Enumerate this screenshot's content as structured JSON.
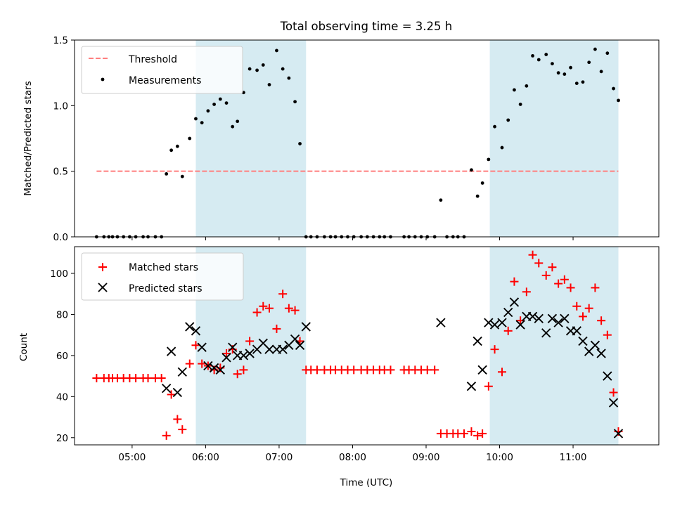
{
  "chart_data": [
    {
      "type": "scatter",
      "title": "Total observing time = 3.25 h",
      "xlabel": "",
      "ylabel": "Matched/Predicted stars",
      "xlim": [
        "04:13",
        "12:10"
      ],
      "ylim": [
        0,
        1.5
      ],
      "yticks": [
        0.0,
        0.5,
        1.0,
        1.5
      ],
      "ytick_labels": [
        "0.0",
        "0.5",
        "1.0",
        "1.5"
      ],
      "xtick_labels": [
        "05:00",
        "06:00",
        "07:00",
        "08:00",
        "09:00",
        "10:00",
        "11:00"
      ],
      "shaded_intervals": [
        [
          "05:52",
          "07:22"
        ],
        [
          "09:52",
          "11:37"
        ]
      ],
      "legend_position": "upper left",
      "series": [
        {
          "name": "Threshold",
          "style": "dashed-line",
          "color": "#ff7f7f",
          "x": [
            "04:31",
            "11:37"
          ],
          "values": [
            0.5,
            0.5
          ]
        },
        {
          "name": "Measurements",
          "style": "dot",
          "color": "#000000",
          "x": [
            "04:31",
            "04:37",
            "04:41",
            "04:44",
            "04:48",
            "04:53",
            "04:58",
            "05:03",
            "05:09",
            "05:13",
            "05:19",
            "05:24",
            "05:28",
            "05:32",
            "05:37",
            "05:41",
            "05:47",
            "05:52",
            "05:57",
            "06:02",
            "06:07",
            "06:12",
            "06:17",
            "06:22",
            "06:26",
            "06:31",
            "06:36",
            "06:42",
            "06:47",
            "06:52",
            "06:58",
            "07:03",
            "07:08",
            "07:13",
            "07:17",
            "07:22",
            "07:26",
            "07:31",
            "07:37",
            "07:42",
            "07:46",
            "07:51",
            "07:56",
            "08:01",
            "08:07",
            "08:12",
            "08:17",
            "08:22",
            "08:26",
            "08:31",
            "08:42",
            "08:46",
            "08:51",
            "08:56",
            "09:01",
            "09:07",
            "09:12",
            "09:17",
            "09:22",
            "09:26",
            "09:31",
            "09:37",
            "09:42",
            "09:46",
            "09:51",
            "09:56",
            "10:02",
            "10:07",
            "10:12",
            "10:17",
            "10:22",
            "10:27",
            "10:32",
            "10:38",
            "10:43",
            "10:48",
            "10:53",
            "10:58",
            "11:03",
            "11:08",
            "11:13",
            "11:18",
            "11:23",
            "11:28",
            "11:33",
            "11:37"
          ],
          "values": [
            0,
            0,
            0,
            0,
            0,
            0,
            0,
            0,
            0,
            0,
            0,
            0,
            0.48,
            0.66,
            0.69,
            0.46,
            0.75,
            0.9,
            0.87,
            0.96,
            1.01,
            1.05,
            1.02,
            0.84,
            0.88,
            1.1,
            1.28,
            1.27,
            1.31,
            1.16,
            1.42,
            1.28,
            1.21,
            1.03,
            0.71,
            0,
            0,
            0,
            0,
            0,
            0,
            0,
            0,
            0,
            0,
            0,
            0,
            0,
            0,
            0,
            0,
            0,
            0,
            0,
            0,
            0,
            0.28,
            0,
            0,
            0,
            0,
            0.51,
            0.31,
            0.41,
            0.59,
            0.84,
            0.68,
            0.89,
            1.12,
            1.01,
            1.15,
            1.38,
            1.35,
            1.39,
            1.32,
            1.25,
            1.24,
            1.29,
            1.17,
            1.18,
            1.33,
            1.43,
            1.26,
            1.4,
            1.13,
            1.04
          ]
        }
      ]
    },
    {
      "type": "scatter",
      "title": "",
      "xlabel": "Time (UTC)",
      "ylabel": "Count",
      "xlim": [
        "04:13",
        "12:10"
      ],
      "ylim": [
        16.5,
        113
      ],
      "yticks": [
        20,
        40,
        60,
        80,
        100
      ],
      "ytick_labels": [
        "20",
        "40",
        "60",
        "80",
        "100"
      ],
      "xtick_labels": [
        "05:00",
        "06:00",
        "07:00",
        "08:00",
        "09:00",
        "10:00",
        "11:00"
      ],
      "shaded_intervals": [
        [
          "05:52",
          "07:22"
        ],
        [
          "09:52",
          "11:37"
        ]
      ],
      "legend_position": "upper left",
      "series": [
        {
          "name": "Matched stars",
          "style": "plus",
          "color": "#ff0000",
          "x": [
            "04:31",
            "04:37",
            "04:41",
            "04:44",
            "04:48",
            "04:53",
            "04:58",
            "05:03",
            "05:09",
            "05:13",
            "05:19",
            "05:24",
            "05:28",
            "05:32",
            "05:37",
            "05:41",
            "05:47",
            "05:52",
            "05:57",
            "06:02",
            "06:07",
            "06:12",
            "06:17",
            "06:22",
            "06:26",
            "06:31",
            "06:36",
            "06:42",
            "06:47",
            "06:52",
            "06:58",
            "07:03",
            "07:08",
            "07:13",
            "07:17",
            "07:22",
            "07:26",
            "07:31",
            "07:37",
            "07:42",
            "07:46",
            "07:51",
            "07:56",
            "08:01",
            "08:07",
            "08:12",
            "08:17",
            "08:22",
            "08:26",
            "08:31",
            "08:42",
            "08:46",
            "08:51",
            "08:56",
            "09:01",
            "09:07",
            "09:12",
            "09:17",
            "09:22",
            "09:26",
            "09:31",
            "09:37",
            "09:42",
            "09:46",
            "09:51",
            "09:56",
            "10:02",
            "10:07",
            "10:12",
            "10:17",
            "10:22",
            "10:27",
            "10:32",
            "10:38",
            "10:43",
            "10:48",
            "10:53",
            "10:58",
            "11:03",
            "11:08",
            "11:13",
            "11:18",
            "11:23",
            "11:28",
            "11:33",
            "11:37"
          ],
          "values": [
            49,
            49,
            49,
            49,
            49,
            49,
            49,
            49,
            49,
            49,
            49,
            49,
            21,
            41,
            29,
            24,
            56,
            65,
            56,
            55,
            53,
            54,
            61,
            63,
            51,
            53,
            67,
            81,
            84,
            83,
            73,
            90,
            83,
            82,
            67,
            53,
            53,
            53,
            53,
            53,
            53,
            53,
            53,
            53,
            53,
            53,
            53,
            53,
            53,
            53,
            53,
            53,
            53,
            53,
            53,
            53,
            22,
            22,
            22,
            22,
            22,
            23,
            21,
            22,
            45,
            63,
            52,
            72,
            96,
            77,
            91,
            109,
            105,
            99,
            103,
            95,
            97,
            93,
            84,
            79,
            83,
            93,
            77,
            70,
            42,
            23
          ]
        },
        {
          "name": "Predicted stars",
          "style": "x",
          "color": "#000000",
          "x": [
            "05:28",
            "05:32",
            "05:37",
            "05:41",
            "05:47",
            "05:52",
            "05:57",
            "06:02",
            "06:07",
            "06:12",
            "06:17",
            "06:22",
            "06:26",
            "06:31",
            "06:36",
            "06:42",
            "06:47",
            "06:52",
            "06:58",
            "07:03",
            "07:08",
            "07:13",
            "07:17",
            "07:22",
            "09:12",
            "09:37",
            "09:42",
            "09:46",
            "09:51",
            "09:56",
            "10:02",
            "10:07",
            "10:12",
            "10:17",
            "10:22",
            "10:27",
            "10:32",
            "10:38",
            "10:43",
            "10:48",
            "10:53",
            "10:58",
            "11:03",
            "11:08",
            "11:13",
            "11:18",
            "11:23",
            "11:28",
            "11:33",
            "11:37"
          ],
          "values": [
            44,
            62,
            42,
            52,
            74,
            72,
            64,
            55,
            54,
            53,
            59,
            64,
            60,
            60,
            61,
            63,
            66,
            63,
            63,
            63,
            65,
            68,
            65,
            74,
            76,
            45,
            67,
            53,
            76,
            75,
            76,
            81,
            86,
            75,
            79,
            79,
            78,
            71,
            78,
            76,
            78,
            72,
            72,
            67,
            62,
            65,
            61,
            50,
            37,
            22
          ]
        }
      ]
    }
  ]
}
